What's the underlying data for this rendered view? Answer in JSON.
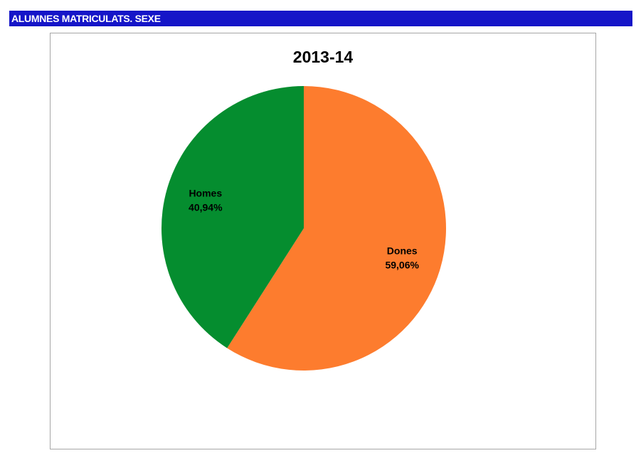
{
  "header": {
    "title": "ALUMNES MATRICULATS. SEXE"
  },
  "colors": {
    "header_bg": "#1515c8",
    "dones": "#fd7c2e",
    "homes": "#058d2f"
  },
  "chart_data": {
    "type": "pie",
    "title": "2013-14",
    "slices": [
      {
        "label": "Dones",
        "value": 59.06,
        "value_label": "59,06%",
        "color": "#fd7c2e"
      },
      {
        "label": "Homes",
        "value": 40.94,
        "value_label": "40,94%",
        "color": "#058d2f"
      }
    ]
  }
}
